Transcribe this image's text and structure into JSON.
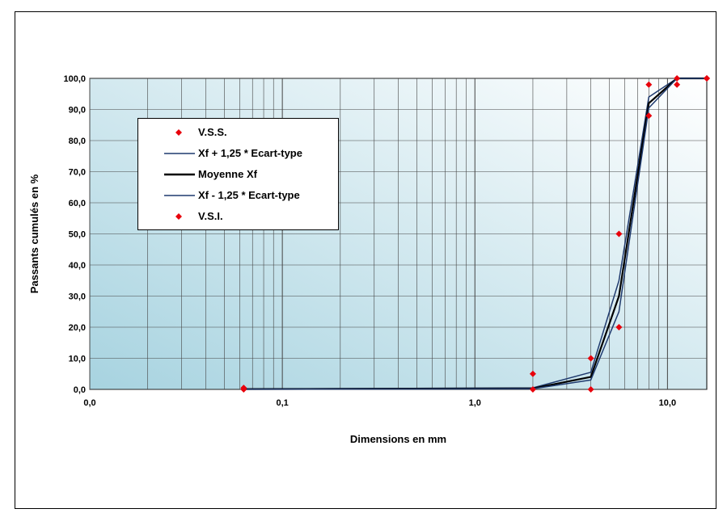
{
  "chart_data": {
    "type": "line",
    "title": "",
    "xlabel": "Dimensions en mm",
    "ylabel": "Passants cumulés en %",
    "xscale": "log",
    "xlim": [
      0.01,
      16
    ],
    "ylim": [
      0,
      100
    ],
    "x_tick_values": [
      0.01,
      0.1,
      1,
      10
    ],
    "x_tick_labels": [
      "0,0",
      "0,1",
      "1,0",
      "10,0"
    ],
    "y_tick_values": [
      0,
      10,
      20,
      30,
      40,
      50,
      60,
      70,
      80,
      90,
      100
    ],
    "y_tick_labels": [
      "0,0",
      "10,0",
      "20,0",
      "30,0",
      "40,0",
      "50,0",
      "60,0",
      "70,0",
      "80,0",
      "90,0",
      "100,0"
    ],
    "grid": true,
    "legend_position": "top-left",
    "series": [
      {
        "name": "V.S.S.",
        "style": "marker",
        "color": "#e8000b",
        "points": [
          [
            0.063,
            0.5
          ],
          [
            2,
            5
          ],
          [
            4,
            10
          ],
          [
            5.6,
            50
          ],
          [
            8,
            98
          ],
          [
            11.2,
            100
          ],
          [
            16,
            100
          ]
        ]
      },
      {
        "name": "Xf + 1,25 * Ecart-type",
        "style": "line",
        "color": "#1f3a6e",
        "points": [
          [
            0.063,
            0.1
          ],
          [
            2,
            0.5
          ],
          [
            4,
            5.5
          ],
          [
            5.6,
            35
          ],
          [
            8,
            94
          ],
          [
            11.2,
            100
          ],
          [
            16,
            100
          ]
        ]
      },
      {
        "name": "Moyenne Xf",
        "style": "line",
        "color": "#000000",
        "points": [
          [
            0.063,
            0.1
          ],
          [
            2,
            0.3
          ],
          [
            4,
            4
          ],
          [
            5.6,
            30
          ],
          [
            8,
            92
          ],
          [
            11.2,
            100
          ],
          [
            16,
            100
          ]
        ]
      },
      {
        "name": "Xf - 1,25 * Ecart-type",
        "style": "line",
        "color": "#1f3a6e",
        "points": [
          [
            0.063,
            0.05
          ],
          [
            2,
            0.2
          ],
          [
            4,
            3
          ],
          [
            5.6,
            25
          ],
          [
            8,
            90.5
          ],
          [
            11.2,
            100
          ],
          [
            16,
            100
          ]
        ]
      },
      {
        "name": "V.S.I.",
        "style": "marker",
        "color": "#e8000b",
        "points": [
          [
            0.063,
            0
          ],
          [
            2,
            0
          ],
          [
            4,
            0
          ],
          [
            5.6,
            20
          ],
          [
            8,
            88
          ],
          [
            11.2,
            98
          ],
          [
            16,
            100
          ]
        ]
      }
    ]
  }
}
